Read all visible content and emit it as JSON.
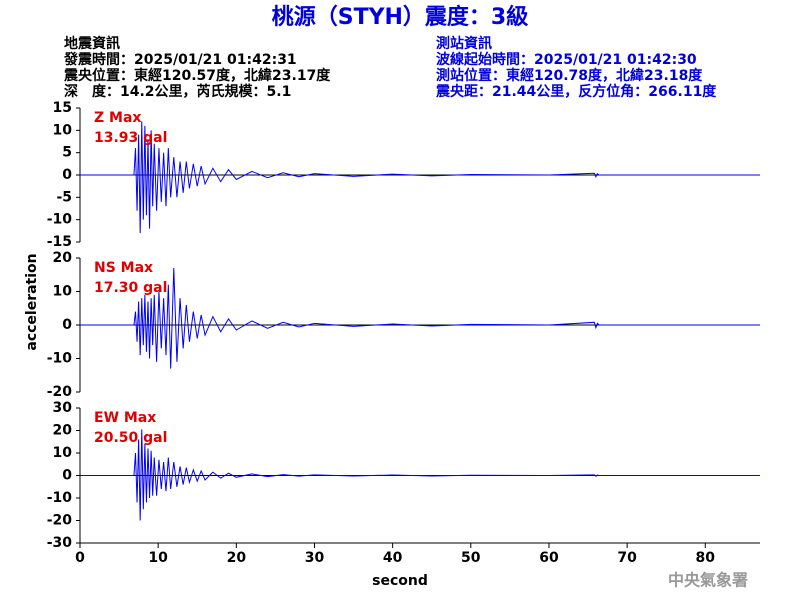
{
  "title": "桃源（STYH）震度：3級",
  "event_info": [
    "地震資訊",
    "發震時間：2025/01/21 01:42:31",
    "震央位置：東經120.57度，北緯23.17度",
    "深　度：14.2公里，芮氏規模：5.1"
  ],
  "station_info": [
    "測站資訊",
    "波線起始時間：2025/01/21 01:42:30",
    "測站位置：東經120.78度，北緯23.18度",
    "震央距：21.44公里，反方位角：266.11度"
  ],
  "xlabel": "second",
  "ylabel": "acceleration",
  "credit": "中央氣象署",
  "chart_data": [
    {
      "type": "line",
      "color": "#0000ff",
      "annotation_color": "#e00000",
      "annotations": [
        "Z Max",
        "13.93 gal"
      ],
      "xlim": [
        0,
        87
      ],
      "ylim": [
        -15,
        15
      ],
      "yticks": [
        -15,
        -10,
        -5,
        0,
        5,
        10,
        15
      ],
      "x": [
        0,
        6.9,
        7.1,
        7.3,
        7.5,
        7.7,
        7.9,
        8.1,
        8.3,
        8.5,
        8.7,
        8.9,
        9.1,
        9.3,
        9.5,
        9.8,
        10.1,
        10.4,
        10.7,
        11,
        11.3,
        11.6,
        12,
        12.4,
        12.8,
        13.2,
        13.6,
        14,
        14.5,
        15,
        15.5,
        16,
        17,
        18,
        19,
        20,
        22,
        24,
        26,
        28,
        30,
        35,
        40,
        45,
        50,
        60,
        65.8,
        66,
        66.2,
        66.4,
        70,
        87
      ],
      "values": [
        0,
        0,
        6,
        -8,
        9,
        -13,
        12,
        -10,
        11,
        -9,
        8,
        -12,
        10,
        -7,
        7,
        -8,
        6,
        -6,
        5,
        -7,
        6,
        -5,
        4,
        -5,
        3,
        -4,
        3,
        -3,
        2.5,
        -2.5,
        2,
        -2,
        1.5,
        -1.5,
        1.2,
        -1,
        0.8,
        -0.6,
        0.5,
        -0.4,
        0.3,
        -0.3,
        0.2,
        -0.2,
        0.1,
        0,
        0.4,
        -0.4,
        0.3,
        0,
        0,
        0
      ]
    },
    {
      "type": "line",
      "color": "#0000ff",
      "annotation_color": "#e00000",
      "annotations": [
        "NS Max",
        "17.30 gal"
      ],
      "xlim": [
        0,
        87
      ],
      "ylim": [
        -20,
        20
      ],
      "yticks": [
        -20,
        -10,
        0,
        10,
        20
      ],
      "x": [
        0,
        6.9,
        7.1,
        7.3,
        7.5,
        7.7,
        7.9,
        8.1,
        8.3,
        8.5,
        8.7,
        8.9,
        9.1,
        9.3,
        9.5,
        9.8,
        10.1,
        10.4,
        10.7,
        11,
        11.3,
        11.6,
        12,
        12.4,
        12.8,
        13.2,
        13.6,
        14,
        14.5,
        15,
        15.5,
        16,
        17,
        18,
        19,
        20,
        22,
        24,
        26,
        28,
        30,
        35,
        40,
        45,
        50,
        60,
        65.8,
        66,
        66.2,
        66.4,
        70,
        87
      ],
      "values": [
        0,
        0,
        4,
        -5,
        7,
        -9,
        8,
        -6,
        9,
        -8,
        7,
        -10,
        8,
        -6,
        9,
        -11,
        10,
        -7,
        8,
        -9,
        12,
        -13,
        17,
        -11,
        8,
        -7,
        6,
        -5,
        4,
        -4,
        3,
        -3,
        2.5,
        -2,
        1.8,
        -1.5,
        1.2,
        -1,
        0.8,
        -0.6,
        0.5,
        -0.4,
        0.3,
        -0.3,
        0.2,
        0,
        0.8,
        -0.8,
        0.5,
        0,
        0,
        0
      ]
    },
    {
      "type": "line",
      "color": "#0000ff",
      "annotation_color": "#e00000",
      "annotations": [
        "EW Max",
        "20.50 gal"
      ],
      "xlim": [
        0,
        87
      ],
      "ylim": [
        -30,
        30
      ],
      "yticks": [
        -30,
        -20,
        -10,
        0,
        10,
        20,
        30
      ],
      "xticks": [
        0,
        10,
        20,
        30,
        40,
        50,
        60,
        70,
        80
      ],
      "x": [
        0,
        6.9,
        7.1,
        7.3,
        7.5,
        7.7,
        7.9,
        8.1,
        8.3,
        8.5,
        8.7,
        8.9,
        9.1,
        9.3,
        9.5,
        9.8,
        10.1,
        10.4,
        10.7,
        11,
        11.3,
        11.6,
        12,
        12.4,
        12.8,
        13.2,
        13.6,
        14,
        14.5,
        15,
        15.5,
        16,
        17,
        18,
        19,
        20,
        22,
        24,
        26,
        28,
        30,
        35,
        40,
        45,
        50,
        60,
        65.8,
        66,
        66.2,
        66.4,
        70,
        87
      ],
      "values": [
        0,
        0,
        10,
        -12,
        16,
        -20,
        20.5,
        -15,
        14,
        -12,
        12,
        -10,
        11,
        -9,
        8,
        -9,
        7,
        -6,
        6,
        -7,
        8,
        -6,
        6,
        -5,
        4,
        -4,
        3.5,
        -3,
        2.5,
        -2.5,
        2,
        -2,
        1.5,
        -1.2,
        1,
        -0.8,
        0.7,
        -0.5,
        0.4,
        -0.3,
        0.3,
        -0.2,
        0.2,
        -0.2,
        0.1,
        0,
        0.3,
        -0.3,
        0.2,
        0,
        0,
        0
      ]
    }
  ]
}
